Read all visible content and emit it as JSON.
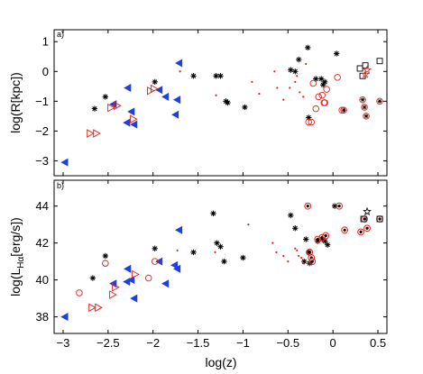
{
  "chart_data": [
    {
      "type": "scatter",
      "panel_label": "a)",
      "ylabel": "log(R[kpc])",
      "xlabel": "",
      "xlim": [
        -3.1,
        0.6
      ],
      "ylim": [
        -3.5,
        1.4
      ],
      "xticks": [
        -3,
        -2.5,
        -2,
        -1.5,
        -1,
        -0.5,
        0,
        0.5
      ],
      "xtick_labels": [
        "",
        "",
        "",
        "",
        "",
        "",
        "",
        ""
      ],
      "yticks": [
        -3,
        -2,
        -1,
        0,
        1
      ],
      "ytick_labels": [
        "−3",
        "−2",
        "−1",
        "0",
        "1"
      ],
      "series": [
        {
          "marker": "filled-left-triangle",
          "color": "#1f3fe0",
          "x": [
            -2.98,
            -2.44,
            -2.29,
            -2.28,
            -2.24,
            -2.21,
            -1.93,
            -1.86,
            -1.75,
            -1.73,
            -1.71
          ],
          "y": [
            -3.05,
            -1.1,
            -1.72,
            -0.55,
            -1.35,
            -1.78,
            -0.62,
            -0.85,
            -1.45,
            -0.95,
            0.28
          ]
        },
        {
          "marker": "open-right-triangle",
          "color": "#e2231a",
          "x": [
            -2.7,
            -2.63,
            -2.47,
            -2.4,
            -2.22,
            -2.03,
            -1.99
          ],
          "y": [
            -2.08,
            -2.08,
            -1.22,
            -1.15,
            -1.6,
            -0.65,
            -0.58
          ]
        },
        {
          "marker": "asterisk",
          "color": "#000000",
          "x": [
            -2.65,
            -2.53,
            -1.98,
            -1.55,
            -1.3,
            -1.25,
            -1.19,
            -1.17,
            -0.98,
            -0.47,
            -0.42,
            -0.38,
            -0.28,
            -0.27,
            -0.19,
            -0.13,
            -0.11,
            -0.09,
            0.04
          ],
          "y": [
            -1.25,
            -0.85,
            -0.35,
            -0.15,
            -0.15,
            -0.15,
            -1.0,
            -1.05,
            -1.2,
            0.05,
            0.0,
            0.4,
            0.8,
            -1.55,
            -0.25,
            -0.25,
            -0.45,
            -0.35,
            0.6
          ]
        },
        {
          "marker": "red-dot",
          "color": "#e2231a",
          "x": [
            -1.7,
            -1.3,
            -0.9,
            -0.82,
            -0.65,
            -0.62,
            -0.55,
            -0.48,
            -0.42,
            -0.4,
            -0.37,
            -0.33,
            -0.3
          ],
          "y": [
            0.0,
            -0.8,
            -0.35,
            -0.75,
            0.0,
            -0.55,
            -0.95,
            -0.55,
            -0.35,
            -0.15,
            -0.7,
            -0.85,
            0.25
          ]
        },
        {
          "marker": "open-circle",
          "color": "#e2231a",
          "x": [
            -0.27,
            -0.24,
            -0.22,
            -0.19,
            -0.16,
            -0.12,
            -0.1,
            -0.09,
            -0.07,
            0.05,
            0.1
          ],
          "y": [
            -1.7,
            -1.7,
            -0.4,
            -1.25,
            -0.85,
            -0.8,
            -1.05,
            -1.05,
            -0.6,
            -0.2,
            -1.3
          ]
        },
        {
          "marker": "circle-asterisk",
          "color": "#e2231a",
          "x": [
            0.12,
            0.33,
            0.35,
            0.37,
            0.52
          ],
          "y": [
            -1.3,
            -0.95,
            -1.2,
            -1.5,
            -1.0
          ]
        },
        {
          "marker": "open-square",
          "color": "#000000",
          "x": [
            0.3,
            0.33,
            0.36,
            0.52
          ],
          "y": [
            0.1,
            -0.15,
            0.2,
            0.35
          ]
        },
        {
          "marker": "star",
          "color": "#e2231a",
          "x": [
            0.36,
            0.38
          ],
          "y": [
            -0.1,
            0.05
          ]
        }
      ]
    },
    {
      "type": "scatter",
      "panel_label": "b)",
      "ylabel": "log(L_Hα[erg/s])",
      "ylabel_main": "log(L",
      "ylabel_sub": "Hα",
      "ylabel_end": "[erg/s])",
      "xlabel": "log(z)",
      "xlim": [
        -3.1,
        0.6
      ],
      "ylim": [
        37.1,
        45.4
      ],
      "xticks": [
        -3,
        -2.5,
        -2,
        -1.5,
        -1,
        -0.5,
        0,
        0.5
      ],
      "xtick_labels": [
        "−3",
        "−2.5",
        "−2",
        "−1.5",
        "−1",
        "−0.5",
        "0",
        "0.5"
      ],
      "yticks": [
        38,
        40,
        42,
        44
      ],
      "ytick_labels": [
        "38",
        "40",
        "42",
        "44"
      ],
      "series": [
        {
          "marker": "filled-left-triangle",
          "color": "#1f3fe0",
          "x": [
            -2.98,
            -2.44,
            -2.29,
            -2.28,
            -2.24,
            -2.21,
            -1.93,
            -1.86,
            -1.76,
            -1.73,
            -1.71
          ],
          "y": [
            38.0,
            39.8,
            39.9,
            40.6,
            40.0,
            39.0,
            41.0,
            39.8,
            40.8,
            40.6,
            42.7
          ]
        },
        {
          "marker": "open-right-triangle",
          "color": "#e2231a",
          "x": [
            -2.68,
            -2.61,
            -2.45,
            -2.42,
            -2.2
          ],
          "y": [
            38.5,
            38.5,
            39.2,
            39.6,
            40.3
          ]
        },
        {
          "marker": "open-circle",
          "color": "#e2231a",
          "x": [
            -2.82,
            -2.53,
            -2.05,
            -1.98
          ],
          "y": [
            39.3,
            40.9,
            40.1,
            41.0
          ]
        },
        {
          "marker": "asterisk",
          "color": "#000000",
          "x": [
            -2.67,
            -2.53,
            -1.98,
            -1.55,
            -1.33,
            -1.29,
            -1.25,
            -1.21,
            -1.0,
            -0.47,
            -0.42,
            -0.32,
            -0.3,
            -0.27,
            -0.26,
            -0.17,
            -0.12,
            -0.09,
            -0.06,
            0.02
          ],
          "y": [
            40.1,
            41.3,
            41.7,
            41.5,
            43.6,
            42.0,
            41.8,
            41.0,
            41.2,
            43.5,
            42.8,
            41.0,
            42.2,
            41.5,
            40.9,
            42.1,
            42.2,
            42.1,
            41.9,
            44.0
          ]
        },
        {
          "marker": "red-dot",
          "color": "#e2231a",
          "x": [
            -1.73,
            -1.31,
            -0.94,
            -0.67,
            -0.63,
            -0.55,
            -0.5,
            -0.42,
            -0.4,
            -0.38,
            -0.35,
            -0.33
          ],
          "y": [
            41.6,
            41.5,
            43.0,
            42.0,
            41.5,
            41.3,
            41.0,
            41.7,
            41.6,
            41.3,
            41.2,
            40.9
          ]
        },
        {
          "marker": "circle-dot",
          "color": "#e2231a",
          "x": [
            -0.28,
            -0.26,
            -0.24,
            -0.23,
            -0.17,
            -0.12,
            -0.08,
            0.07,
            0.13,
            0.31,
            0.35,
            0.38,
            0.52
          ],
          "y": [
            44.0,
            41.5,
            41.2,
            41.0,
            42.2,
            42.3,
            42.4,
            44.0,
            42.7,
            42.6,
            43.3,
            42.8,
            43.3
          ]
        },
        {
          "marker": "star",
          "color": "#000000",
          "x": [
            0.38
          ],
          "y": [
            43.7
          ]
        },
        {
          "marker": "open-square",
          "color": "#000000",
          "x": [
            0.34,
            0.52
          ],
          "y": [
            43.3,
            43.3
          ]
        }
      ]
    }
  ]
}
